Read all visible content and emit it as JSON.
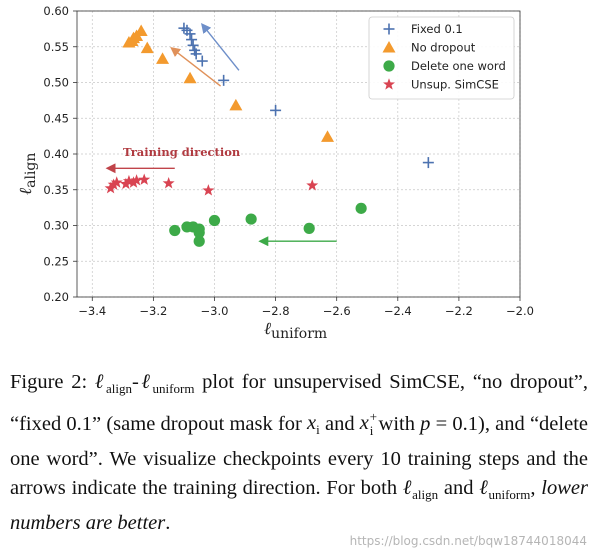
{
  "chart_data": {
    "type": "scatter",
    "title": "",
    "xlabel": {
      "main": "ℓ",
      "sub": "uniform"
    },
    "ylabel": {
      "main": "ℓ",
      "sub": "align"
    },
    "xlim": [
      -3.45,
      -2.0
    ],
    "ylim": [
      0.2,
      0.6
    ],
    "xticks": [
      -3.4,
      -3.2,
      -3.0,
      -2.8,
      -2.6,
      -2.4,
      -2.2,
      -2.0
    ],
    "xtick_labels": [
      "−3.4",
      "−3.2",
      "−3.0",
      "−2.8",
      "−2.6",
      "−2.4",
      "−2.2",
      "−2.0"
    ],
    "yticks": [
      0.2,
      0.25,
      0.3,
      0.35,
      0.4,
      0.45,
      0.5,
      0.55,
      0.6
    ],
    "ytick_labels": [
      "0.20",
      "0.25",
      "0.30",
      "0.35",
      "0.40",
      "0.45",
      "0.50",
      "0.55",
      "0.60"
    ],
    "grid": true,
    "legend_position": "top-right",
    "series": [
      {
        "name": "Fixed 0.1",
        "marker": "plus",
        "color": "#4c72b0",
        "points": [
          [
            -3.1,
            0.576
          ],
          [
            -3.09,
            0.573
          ],
          [
            -3.08,
            0.568
          ],
          [
            -3.075,
            0.56
          ],
          [
            -3.07,
            0.552
          ],
          [
            -3.065,
            0.545
          ],
          [
            -3.06,
            0.54
          ],
          [
            -3.04,
            0.53
          ],
          [
            -2.97,
            0.503
          ],
          [
            -2.8,
            0.461
          ],
          [
            -2.3,
            0.388
          ]
        ]
      },
      {
        "name": "No dropout",
        "marker": "triangle",
        "color": "#f39a2e",
        "points": [
          [
            -3.28,
            0.556
          ],
          [
            -3.27,
            0.558
          ],
          [
            -3.265,
            0.562
          ],
          [
            -3.255,
            0.565
          ],
          [
            -3.24,
            0.572
          ],
          [
            -3.22,
            0.548
          ],
          [
            -3.17,
            0.533
          ],
          [
            -3.08,
            0.506
          ],
          [
            -2.93,
            0.468
          ],
          [
            -2.63,
            0.424
          ]
        ]
      },
      {
        "name": "Delete one word",
        "marker": "circle",
        "color": "#3daa48",
        "points": [
          [
            -3.05,
            0.278
          ],
          [
            -3.05,
            0.29
          ],
          [
            -3.05,
            0.295
          ],
          [
            -3.07,
            0.298
          ],
          [
            -3.09,
            0.298
          ],
          [
            -3.13,
            0.293
          ],
          [
            -3.0,
            0.307
          ],
          [
            -2.88,
            0.309
          ],
          [
            -2.69,
            0.296
          ],
          [
            -2.52,
            0.324
          ]
        ]
      },
      {
        "name": "Unsup. SimCSE",
        "marker": "star",
        "color": "#d94452",
        "points": [
          [
            -3.34,
            0.352
          ],
          [
            -3.33,
            0.357
          ],
          [
            -3.32,
            0.36
          ],
          [
            -3.29,
            0.358
          ],
          [
            -3.28,
            0.362
          ],
          [
            -3.265,
            0.36
          ],
          [
            -3.255,
            0.363
          ],
          [
            -3.23,
            0.364
          ],
          [
            -3.15,
            0.359
          ],
          [
            -3.02,
            0.349
          ],
          [
            -2.68,
            0.356
          ]
        ]
      }
    ],
    "arrows": [
      {
        "color": "#6e8fc9",
        "from": [
          -2.92,
          0.517
        ],
        "to": [
          -3.04,
          0.581
        ]
      },
      {
        "color": "#e0915a",
        "from": [
          -2.98,
          0.495
        ],
        "to": [
          -3.14,
          0.548
        ]
      },
      {
        "color": "#3daa48",
        "from": [
          -2.6,
          0.278
        ],
        "to": [
          -2.85,
          0.278
        ]
      },
      {
        "color": "#c0444a",
        "from": [
          -3.13,
          0.38
        ],
        "to": [
          -3.35,
          0.38
        ]
      }
    ],
    "annotation": {
      "text": "Training direction",
      "color": "#b03a40"
    }
  },
  "caption": {
    "fig_label": "Figure 2: ",
    "l": "ℓ",
    "sub_align": "align",
    "dash": "-",
    "sub_uniform": "uniform",
    "t1": " plot for unsupervised SimCSE, “no dropout”, “fixed 0.1” (same dropout mask for ",
    "x": "x",
    "i": "i",
    "t2": " and ",
    "plus": "+",
    "t3": " with ",
    "p": "p",
    "t4": " = 0.1), and “delete one word”. We visualize checkpoints every 10 training steps and the arrows indicate the training direction. For both ",
    "t5": " and ",
    "t6": ", ",
    "em": "lower numbers are better",
    "end": "."
  },
  "watermark": "https://blog.csdn.net/bqw18744018044"
}
